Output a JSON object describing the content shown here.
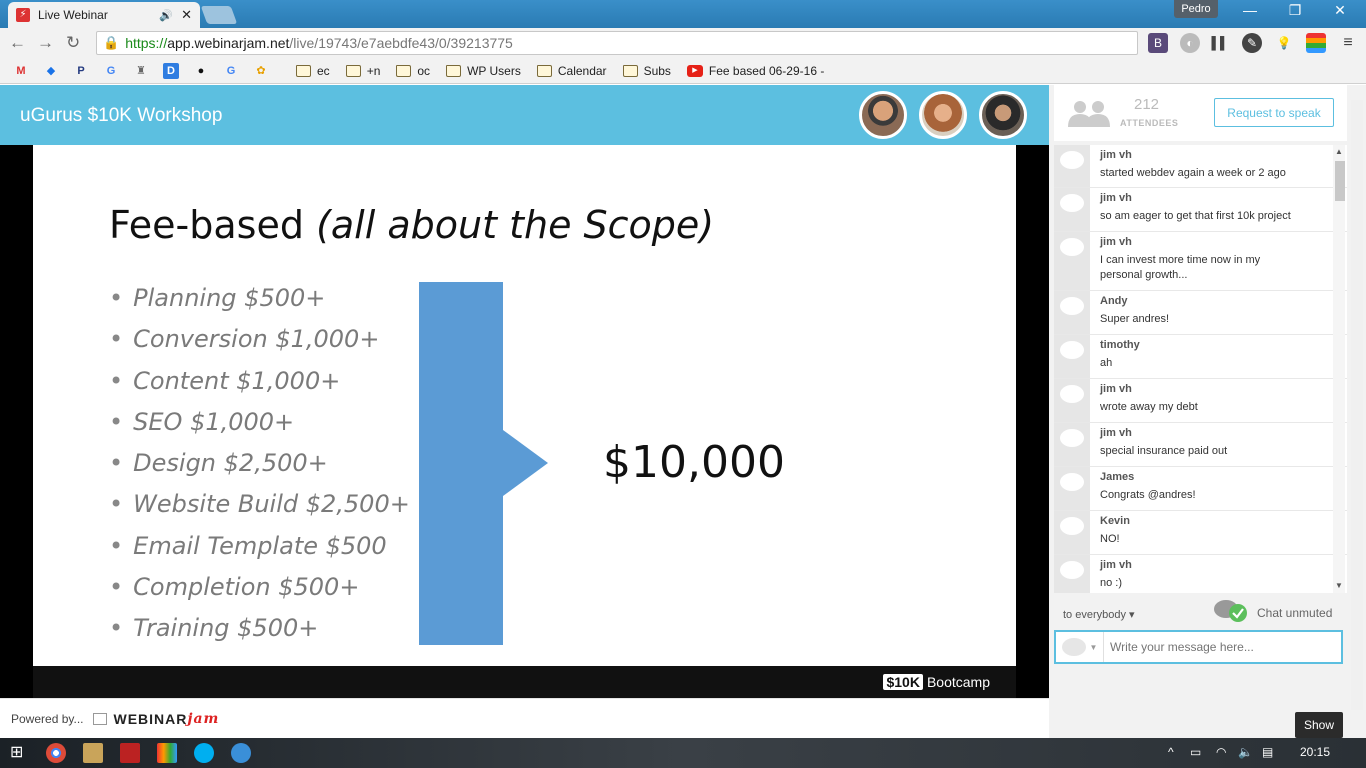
{
  "browser": {
    "tab_title": "Live Webinar",
    "profile_name": "Pedro",
    "url": {
      "scheme": "https://",
      "host": "app.webinarjam.net",
      "path": "/live/19743/e7aebdfe43/0/39213775"
    },
    "bookmarks": [
      {
        "label": "ec"
      },
      {
        "label": "+n"
      },
      {
        "label": "oc"
      },
      {
        "label": "WP Users"
      },
      {
        "label": "Calendar"
      },
      {
        "label": "Subs"
      }
    ],
    "bookmark_video": "Fee based 06-29-16 -"
  },
  "header": {
    "title": "uGurus $10K Workshop"
  },
  "slide": {
    "title_plain": "Fee-based",
    "title_italic": "(all about the Scope)",
    "bullets": [
      "Planning $500+",
      "Conversion $1,000+",
      "Content $1,000+",
      "SEO $1,000+",
      "Design $2,500+",
      "Website Build $2,500+",
      "Email Template $500",
      "Completion $500+",
      "Training $500+"
    ],
    "total": "$10,000",
    "brand_box": "$10K",
    "brand_text": "Bootcamp"
  },
  "footer": {
    "powered_by": "Powered by...",
    "logo_main": "WEBINAR",
    "logo_accent": "jam"
  },
  "sidebar": {
    "attendee_count": "212",
    "attendee_label": "ATTENDEES",
    "request_button": "Request to speak",
    "messages": [
      {
        "name": "jim vh",
        "text": "started webdev again a week or 2 ago"
      },
      {
        "name": "jim vh",
        "text": "so am eager to get that first 10k project"
      },
      {
        "name": "jim vh",
        "text": "I can invest more time now in my personal growth..."
      },
      {
        "name": "Andy",
        "text": "Super andres!"
      },
      {
        "name": "timothy",
        "text": "ah"
      },
      {
        "name": "jim vh",
        "text": "wrote away my debt"
      },
      {
        "name": "jim vh",
        "text": "special insurance paid out"
      },
      {
        "name": "James",
        "text": "Congrats @andres!"
      },
      {
        "name": "Kevin",
        "text": "NO!"
      },
      {
        "name": "jim vh",
        "text": "no :)"
      }
    ],
    "to_label": "to everybody",
    "chat_status": "Chat unmuted",
    "input_placeholder": "Write your message here...",
    "show_tooltip": "Show"
  },
  "taskbar": {
    "time": "20:15"
  }
}
